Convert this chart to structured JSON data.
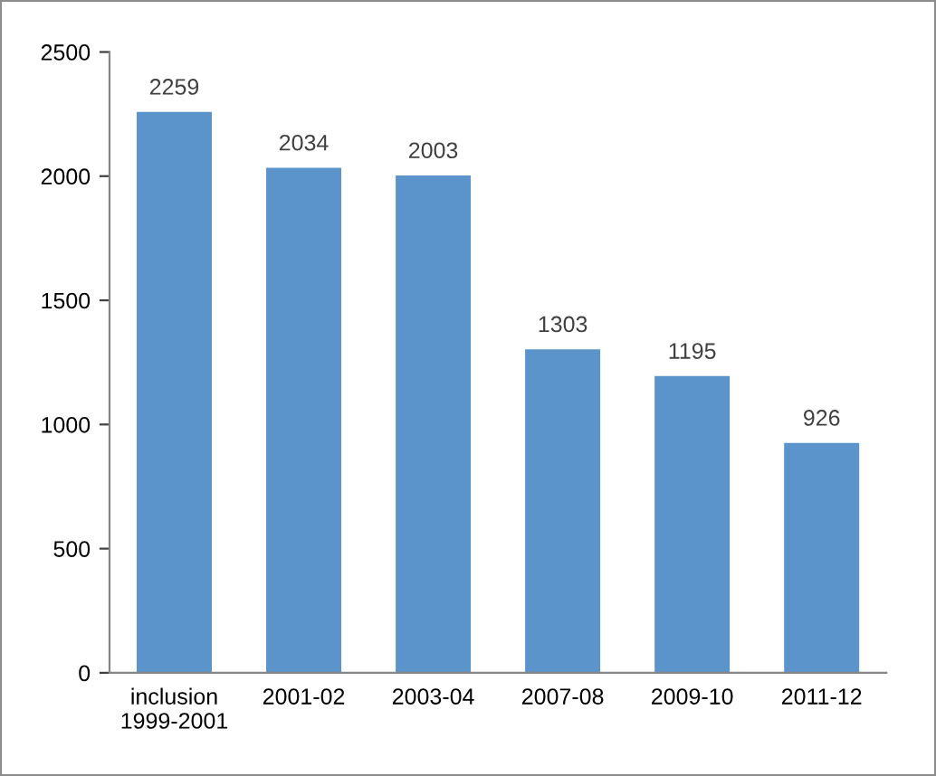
{
  "chart_data": {
    "type": "bar",
    "categories": [
      "inclusion\n1999-2001",
      "2001-02",
      "2003-04",
      "2007-08",
      "2009-10",
      "2011-12"
    ],
    "values": [
      2259,
      2034,
      2003,
      1303,
      1195,
      926
    ],
    "color": "#5b93cb",
    "ylim": [
      0,
      2500
    ],
    "yticks": [
      0,
      500,
      1000,
      1500,
      2000,
      2500
    ],
    "grid": false,
    "data_labels": true
  }
}
